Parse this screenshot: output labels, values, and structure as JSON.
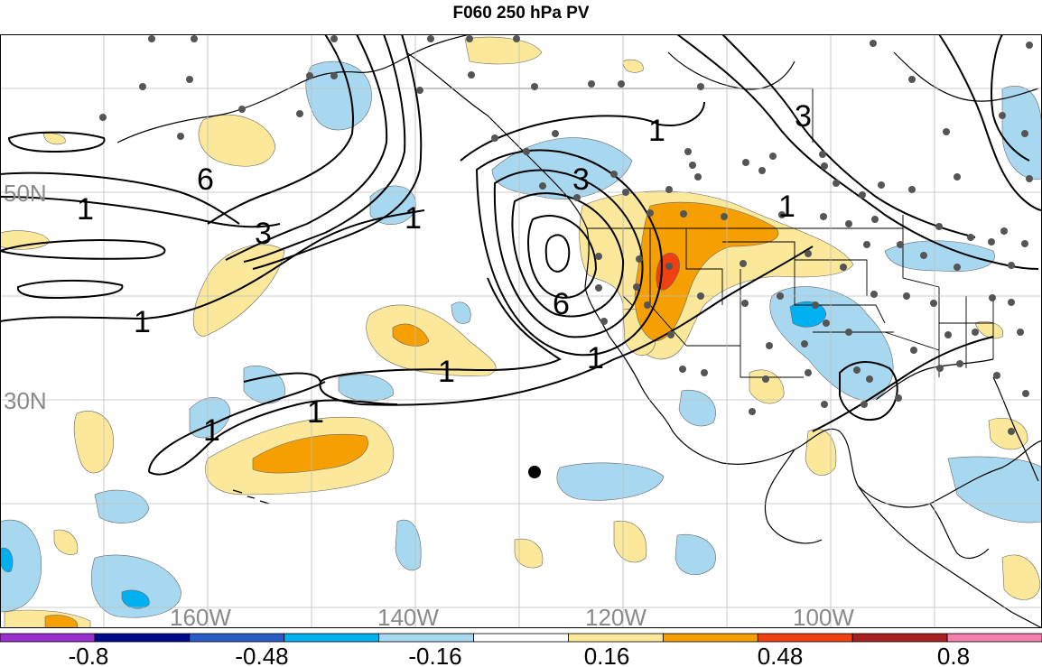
{
  "title": "F060 250 hPa PV",
  "map": {
    "lat_labels": [
      "50N",
      "30N"
    ],
    "lon_labels": [
      "160W",
      "140W",
      "120W",
      "100W"
    ],
    "contour_labels": [
      {
        "text": "6"
      },
      {
        "text": "1"
      },
      {
        "text": "3"
      },
      {
        "text": "1"
      },
      {
        "text": "1"
      },
      {
        "text": "6"
      },
      {
        "text": "3"
      },
      {
        "text": "1"
      },
      {
        "text": "1"
      },
      {
        "text": "1"
      },
      {
        "text": "1"
      },
      {
        "text": "1"
      },
      {
        "text": "3"
      },
      {
        "text": "1"
      }
    ],
    "colors": {
      "neg_light": "#a8d8f0",
      "neg_mid": "#00b0f0",
      "pos_light": "#fce89a",
      "pos_mid": "#f5a000",
      "pos_strong": "#f04010",
      "land_outline": "#000000",
      "grid": "#bdbdbd",
      "station_dot": "#555555"
    }
  },
  "colorbar": {
    "tick_labels": [
      "-0.8",
      "-0.48",
      "-0.16",
      "0.16",
      "0.48",
      "0.8"
    ],
    "colors": [
      "#9b30d0",
      "#000a8c",
      "#2a5cc8",
      "#00b0f0",
      "#a8d8f0",
      "#ffffff",
      "#fce89a",
      "#f5a000",
      "#f04010",
      "#a82020",
      "#f580b0"
    ]
  }
}
